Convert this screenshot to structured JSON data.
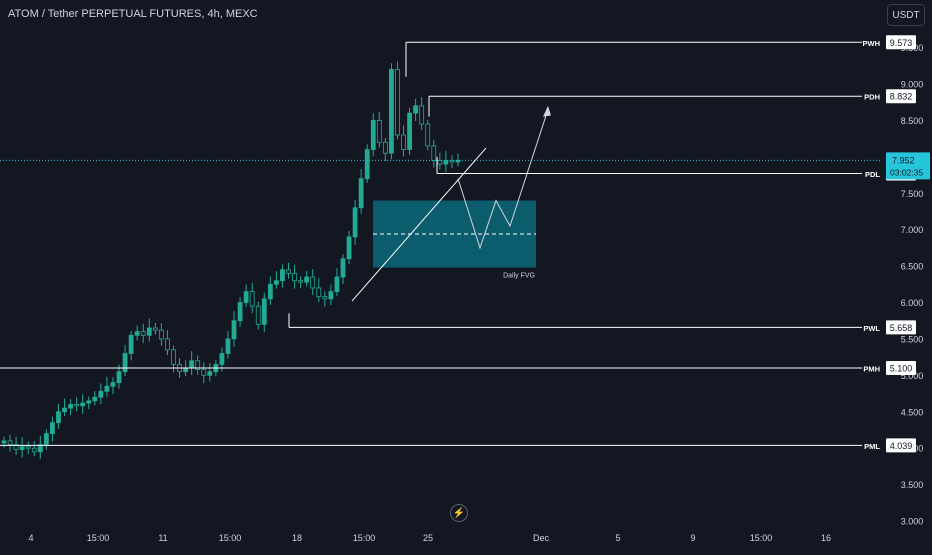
{
  "header": {
    "title": "ATOM / Tether PERPETUAL FUTURES, 4h, MEXC",
    "currency_button": "USDT"
  },
  "price_axis": {
    "ticks": [
      "9.500",
      "9.000",
      "8.500",
      "8.000",
      "7.500",
      "7.000",
      "6.500",
      "6.000",
      "5.500",
      "5.000",
      "4.500",
      "4.000",
      "3.500",
      "3.000"
    ],
    "current_price": "7.952",
    "countdown": "03:02:35",
    "current_color": "#26c6da"
  },
  "time_axis": {
    "labels": [
      "4",
      "15:00",
      "11",
      "15:00",
      "18",
      "15:00",
      "25",
      "Dec",
      "5",
      "9",
      "15:00",
      "16"
    ]
  },
  "levels": [
    {
      "label": "PWH",
      "value": "9.573"
    },
    {
      "label": "PDH",
      "value": "8.832"
    },
    {
      "label": "PDL",
      "value": "7.771"
    },
    {
      "label": "PWL",
      "value": "5.658"
    },
    {
      "label": "PMH",
      "value": "5.100"
    },
    {
      "label": "PML",
      "value": "4.039"
    }
  ],
  "zone": {
    "label": "Daily FVG",
    "top": 7.4,
    "bottom": 6.48,
    "color": "#00bcd4"
  },
  "colors": {
    "up": "#26a69a",
    "down": "#ef5350",
    "candle": "#22ab94",
    "background": "#131722"
  },
  "icons": {
    "replay": "lightning-icon"
  },
  "chart_data": {
    "type": "candlestick",
    "title": "ATOM / Tether PERPETUAL FUTURES, 4h, MEXC",
    "ylim": [
      3.0,
      9.8
    ],
    "y_tick_step": 0.5,
    "x": [
      "4",
      "15:00",
      "11",
      "15:00",
      "18",
      "15:00",
      "25",
      "Dec",
      "5",
      "9",
      "15:00",
      "16"
    ],
    "close_path": [
      4.1,
      4.05,
      3.98,
      4.02,
      4.0,
      3.95,
      4.05,
      4.2,
      4.35,
      4.5,
      4.55,
      4.6,
      4.58,
      4.62,
      4.65,
      4.7,
      4.78,
      4.85,
      4.9,
      5.05,
      5.3,
      5.55,
      5.6,
      5.55,
      5.65,
      5.62,
      5.5,
      5.35,
      5.15,
      5.05,
      5.1,
      5.2,
      5.08,
      5.0,
      5.05,
      5.15,
      5.3,
      5.5,
      5.75,
      6.0,
      6.15,
      5.95,
      5.7,
      6.05,
      6.25,
      6.3,
      6.45,
      6.4,
      6.3,
      6.28,
      6.35,
      6.2,
      6.08,
      6.05,
      6.15,
      6.35,
      6.6,
      6.9,
      7.3,
      7.7,
      8.1,
      8.5,
      8.2,
      8.05,
      9.2,
      8.3,
      8.1,
      8.6,
      8.7,
      8.45,
      8.15,
      7.95,
      7.9,
      7.95,
      7.93,
      7.952
    ],
    "current": 7.952
  }
}
